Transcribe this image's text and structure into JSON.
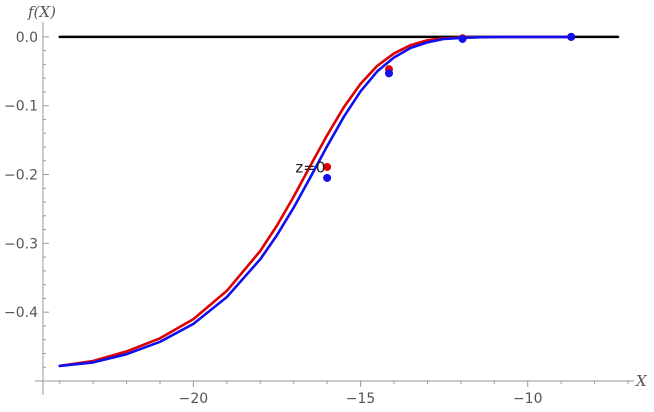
{
  "chart_data": {
    "type": "line",
    "xlabel": "X",
    "ylabel": "f(X)",
    "xlim": [
      -24.5,
      -7.0
    ],
    "ylim": [
      -0.5,
      0.01
    ],
    "x_ticks": [
      {
        "value": -20,
        "label": "−20"
      },
      {
        "value": -15,
        "label": "−15"
      },
      {
        "value": -10,
        "label": "−10"
      }
    ],
    "y_ticks": [
      {
        "value": 0.0,
        "label": "0.0"
      },
      {
        "value": -0.1,
        "label": "−0.1"
      },
      {
        "value": -0.2,
        "label": "−0.2"
      },
      {
        "value": -0.3,
        "label": "−0.3"
      },
      {
        "value": -0.4,
        "label": "−0.4"
      }
    ],
    "annotation": {
      "text": "z=0",
      "x": -16.5,
      "y": -0.19
    },
    "series": [
      {
        "color": "#000000",
        "x": [
          -24.0,
          -7.3
        ],
        "y": [
          0.0,
          0.0
        ]
      },
      {
        "color": "#e00000",
        "x": [
          -24.0,
          -23.0,
          -22.0,
          -21.0,
          -20.0,
          -19.0,
          -18.0,
          -17.5,
          -17.0,
          -16.5,
          -16.0,
          -15.5,
          -15.0,
          -14.5,
          -14.0,
          -13.5,
          -13.0,
          -12.5,
          -12.0,
          -11.5,
          -11.0,
          -10.0,
          -9.0,
          -8.7
        ],
        "y": [
          -0.478,
          -0.471,
          -0.457,
          -0.438,
          -0.41,
          -0.369,
          -0.311,
          -0.274,
          -0.232,
          -0.187,
          -0.143,
          -0.102,
          -0.068,
          -0.042,
          -0.024,
          -0.012,
          -0.005,
          -0.002,
          -0.001,
          -0.0004,
          -0.0001,
          0.0,
          0.0,
          0.0
        ],
        "markers": [
          {
            "x": -16.0,
            "y": -0.189
          },
          {
            "x": -14.15,
            "y": -0.047
          },
          {
            "x": -11.95,
            "y": -0.002
          },
          {
            "x": -8.7,
            "y": 0.0
          }
        ]
      },
      {
        "color": "#1010ee",
        "x": [
          -24.0,
          -23.0,
          -22.0,
          -21.0,
          -20.0,
          -19.0,
          -18.0,
          -17.5,
          -17.0,
          -16.5,
          -16.0,
          -15.5,
          -15.0,
          -14.5,
          -14.0,
          -13.5,
          -13.0,
          -12.5,
          -12.0,
          -11.5,
          -11.0,
          -10.0,
          -9.0,
          -8.7
        ],
        "y": [
          -0.478,
          -0.473,
          -0.461,
          -0.443,
          -0.417,
          -0.378,
          -0.323,
          -0.288,
          -0.248,
          -0.204,
          -0.159,
          -0.116,
          -0.079,
          -0.05,
          -0.03,
          -0.016,
          -0.008,
          -0.003,
          -0.0015,
          -0.0006,
          -0.0002,
          0.0,
          0.0,
          0.0
        ],
        "markers": [
          {
            "x": -16.0,
            "y": -0.205
          },
          {
            "x": -14.15,
            "y": -0.053
          },
          {
            "x": -11.95,
            "y": -0.003
          },
          {
            "x": -8.7,
            "y": 0.0
          }
        ]
      }
    ]
  }
}
